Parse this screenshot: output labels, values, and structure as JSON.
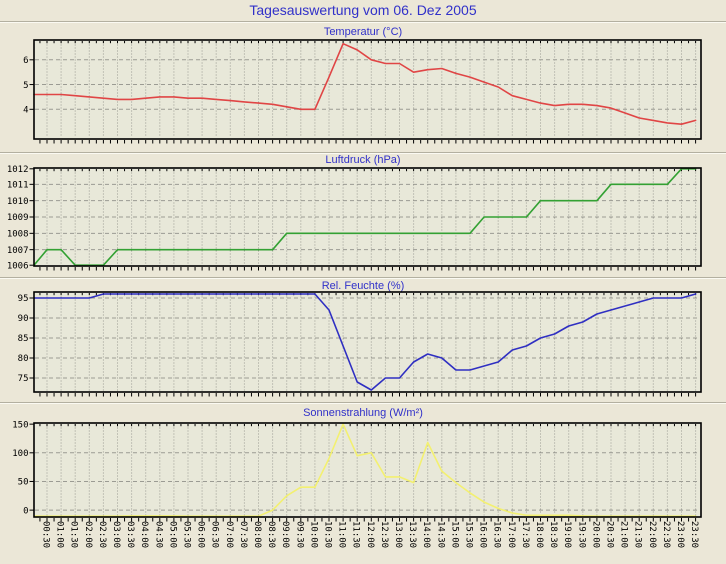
{
  "header": {
    "title": "Tagesauswertung vom 06. Dez 2005"
  },
  "colors": {
    "page_bg": "#ebe7d7",
    "plot_bg": "#e8e8d9",
    "grid": "#9b9b93",
    "title_text": "#3131c9",
    "axis_text": "#000000",
    "plot_border": "#000000",
    "temperature_line": "#e04545",
    "pressure_line": "#33a133",
    "humidity_line": "#2f2fc2",
    "solar_line": "#f3f070"
  },
  "x_axis": {
    "tick_labels": [
      "00:30",
      "01:00",
      "01:30",
      "02:00",
      "02:30",
      "03:00",
      "03:30",
      "04:00",
      "04:30",
      "05:00",
      "05:30",
      "06:00",
      "06:30",
      "07:00",
      "07:30",
      "08:00",
      "08:30",
      "09:00",
      "09:30",
      "10:00",
      "10:30",
      "11:00",
      "11:30",
      "12:00",
      "12:30",
      "13:00",
      "13:30",
      "14:00",
      "14:30",
      "15:00",
      "15:30",
      "16:00",
      "16:30",
      "17:00",
      "17:30",
      "18:00",
      "18:30",
      "19:00",
      "19:30",
      "20:00",
      "20:30",
      "21:00",
      "21:30",
      "22:00",
      "22:30",
      "23:00",
      "23:30"
    ]
  },
  "chart_data": [
    {
      "type": "line",
      "id": "temperature",
      "title": "Temperatur (°C)",
      "series_color": "#e04545",
      "yticks": [
        4,
        5,
        6
      ],
      "ylim": [
        2.8,
        6.8
      ],
      "grid": true,
      "legend": "none",
      "start_value": 4.6,
      "values": [
        4.6,
        4.6,
        4.55,
        4.5,
        4.45,
        4.4,
        4.4,
        4.45,
        4.5,
        4.5,
        4.45,
        4.45,
        4.4,
        4.35,
        4.3,
        4.25,
        4.2,
        4.1,
        4.0,
        4.0,
        5.3,
        6.65,
        6.4,
        6.0,
        5.85,
        5.85,
        5.5,
        5.6,
        5.65,
        5.45,
        5.3,
        5.1,
        4.9,
        4.55,
        4.4,
        4.25,
        4.15,
        4.2,
        4.2,
        4.15,
        4.05,
        3.85,
        3.65,
        3.55,
        3.45,
        3.4,
        3.55
      ]
    },
    {
      "type": "line",
      "id": "pressure",
      "title": "Luftdruck (hPa)",
      "series_color": "#33a133",
      "yticks": [
        1006,
        1007,
        1008,
        1009,
        1010,
        1011,
        1012
      ],
      "ylim": [
        1006,
        1012
      ],
      "grid": true,
      "legend": "none",
      "start_value": 1006,
      "values": [
        1007,
        1007,
        1006,
        1006,
        1006,
        1007,
        1007,
        1007,
        1007,
        1007,
        1007,
        1007,
        1007,
        1007,
        1007,
        1007,
        1007,
        1008,
        1008,
        1008,
        1008,
        1008,
        1008,
        1008,
        1008,
        1008,
        1008,
        1008,
        1008,
        1008,
        1008,
        1009,
        1009,
        1009,
        1009,
        1010,
        1010,
        1010,
        1010,
        1010,
        1011,
        1011,
        1011,
        1011,
        1011,
        1012,
        1012
      ]
    },
    {
      "type": "line",
      "id": "humidity",
      "title": "Rel. Feuchte (%)",
      "series_color": "#2f2fc2",
      "yticks": [
        75,
        80,
        85,
        90,
        95
      ],
      "ylim": [
        71.5,
        96.5
      ],
      "grid": true,
      "legend": "none",
      "start_value": 95,
      "values": [
        95,
        95,
        95,
        95,
        96,
        96,
        96,
        96,
        96,
        96,
        96,
        96,
        96,
        96,
        96,
        96,
        96,
        96,
        96,
        96,
        92,
        83,
        74,
        72,
        75,
        75,
        79,
        81,
        80,
        77,
        77,
        78,
        79,
        82,
        83,
        85,
        86,
        88,
        89,
        91,
        92,
        93,
        94,
        95,
        95,
        95,
        96
      ]
    },
    {
      "type": "line",
      "id": "solar",
      "title": "Sonnenstrahlung (W/m²)",
      "series_color": "#f3f070",
      "yticks": [
        0,
        50,
        100,
        150
      ],
      "ylim": [
        -12,
        152
      ],
      "grid": true,
      "legend": "none",
      "start_value": -14,
      "values": [
        -14,
        -14,
        -14,
        -14,
        -14,
        -14,
        -10,
        -10,
        -10,
        -10,
        -14,
        -14,
        -14,
        -14,
        -14,
        -14,
        0,
        25,
        40,
        40,
        90,
        150,
        95,
        100,
        58,
        58,
        48,
        118,
        68,
        48,
        30,
        14,
        3,
        -5,
        -9,
        -9,
        -9,
        -9,
        -10,
        -14,
        -14,
        -14,
        -14,
        -14,
        -14,
        -14,
        -14
      ]
    }
  ]
}
